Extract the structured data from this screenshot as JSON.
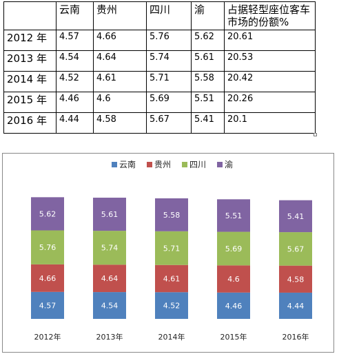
{
  "table": {
    "header": [
      "",
      "云南",
      "贵州",
      "四川",
      "渝",
      "占据轻型座位客车市场的份额%"
    ],
    "rows": [
      {
        "year": "2012 年",
        "values": [
          "4.57",
          "4.66",
          "5.76",
          "5.62",
          "20.61"
        ]
      },
      {
        "year": "2013 年",
        "values": [
          "4.54",
          "4.64",
          "5.74",
          "5.61",
          "20.53"
        ]
      },
      {
        "year": "2014 年",
        "values": [
          "4.52",
          "4.61",
          "5.71",
          "5.58",
          "20.42"
        ]
      },
      {
        "year": "2015 年",
        "values": [
          "4.46",
          "4.6",
          "5.69",
          "5.51",
          "20.26"
        ]
      },
      {
        "year": "2016 年",
        "values": [
          "4.44",
          "4.58",
          "5.67",
          "5.41",
          "20.1"
        ]
      }
    ]
  },
  "chart_data": {
    "type": "bar",
    "stacked": true,
    "categories": [
      "2012年",
      "2013年",
      "2014年",
      "2015年",
      "2016年"
    ],
    "series": [
      {
        "name": "云南",
        "color": "#4f81bd",
        "values": [
          4.57,
          4.54,
          4.52,
          4.46,
          4.44
        ],
        "labels": [
          "4.57",
          "4.54",
          "4.52",
          "4.46",
          "4.44"
        ]
      },
      {
        "name": "贵州",
        "color": "#c0504d",
        "values": [
          4.66,
          4.64,
          4.61,
          4.6,
          4.58
        ],
        "labels": [
          "4.66",
          "4.64",
          "4.61",
          "4.6",
          "4.58"
        ]
      },
      {
        "name": "四川",
        "color": "#9bbb59",
        "values": [
          5.76,
          5.74,
          5.71,
          5.69,
          5.67
        ],
        "labels": [
          "5.76",
          "5.74",
          "5.71",
          "5.69",
          "5.67"
        ]
      },
      {
        "name": "渝",
        "color": "#8064a2",
        "values": [
          5.62,
          5.61,
          5.58,
          5.51,
          5.41
        ],
        "labels": [
          "5.62",
          "5.61",
          "5.58",
          "5.51",
          "5.41"
        ]
      }
    ],
    "title": "",
    "xlabel": "",
    "ylabel": "",
    "ylim": [
      0,
      21
    ],
    "grid": false,
    "legend_position": "top"
  }
}
